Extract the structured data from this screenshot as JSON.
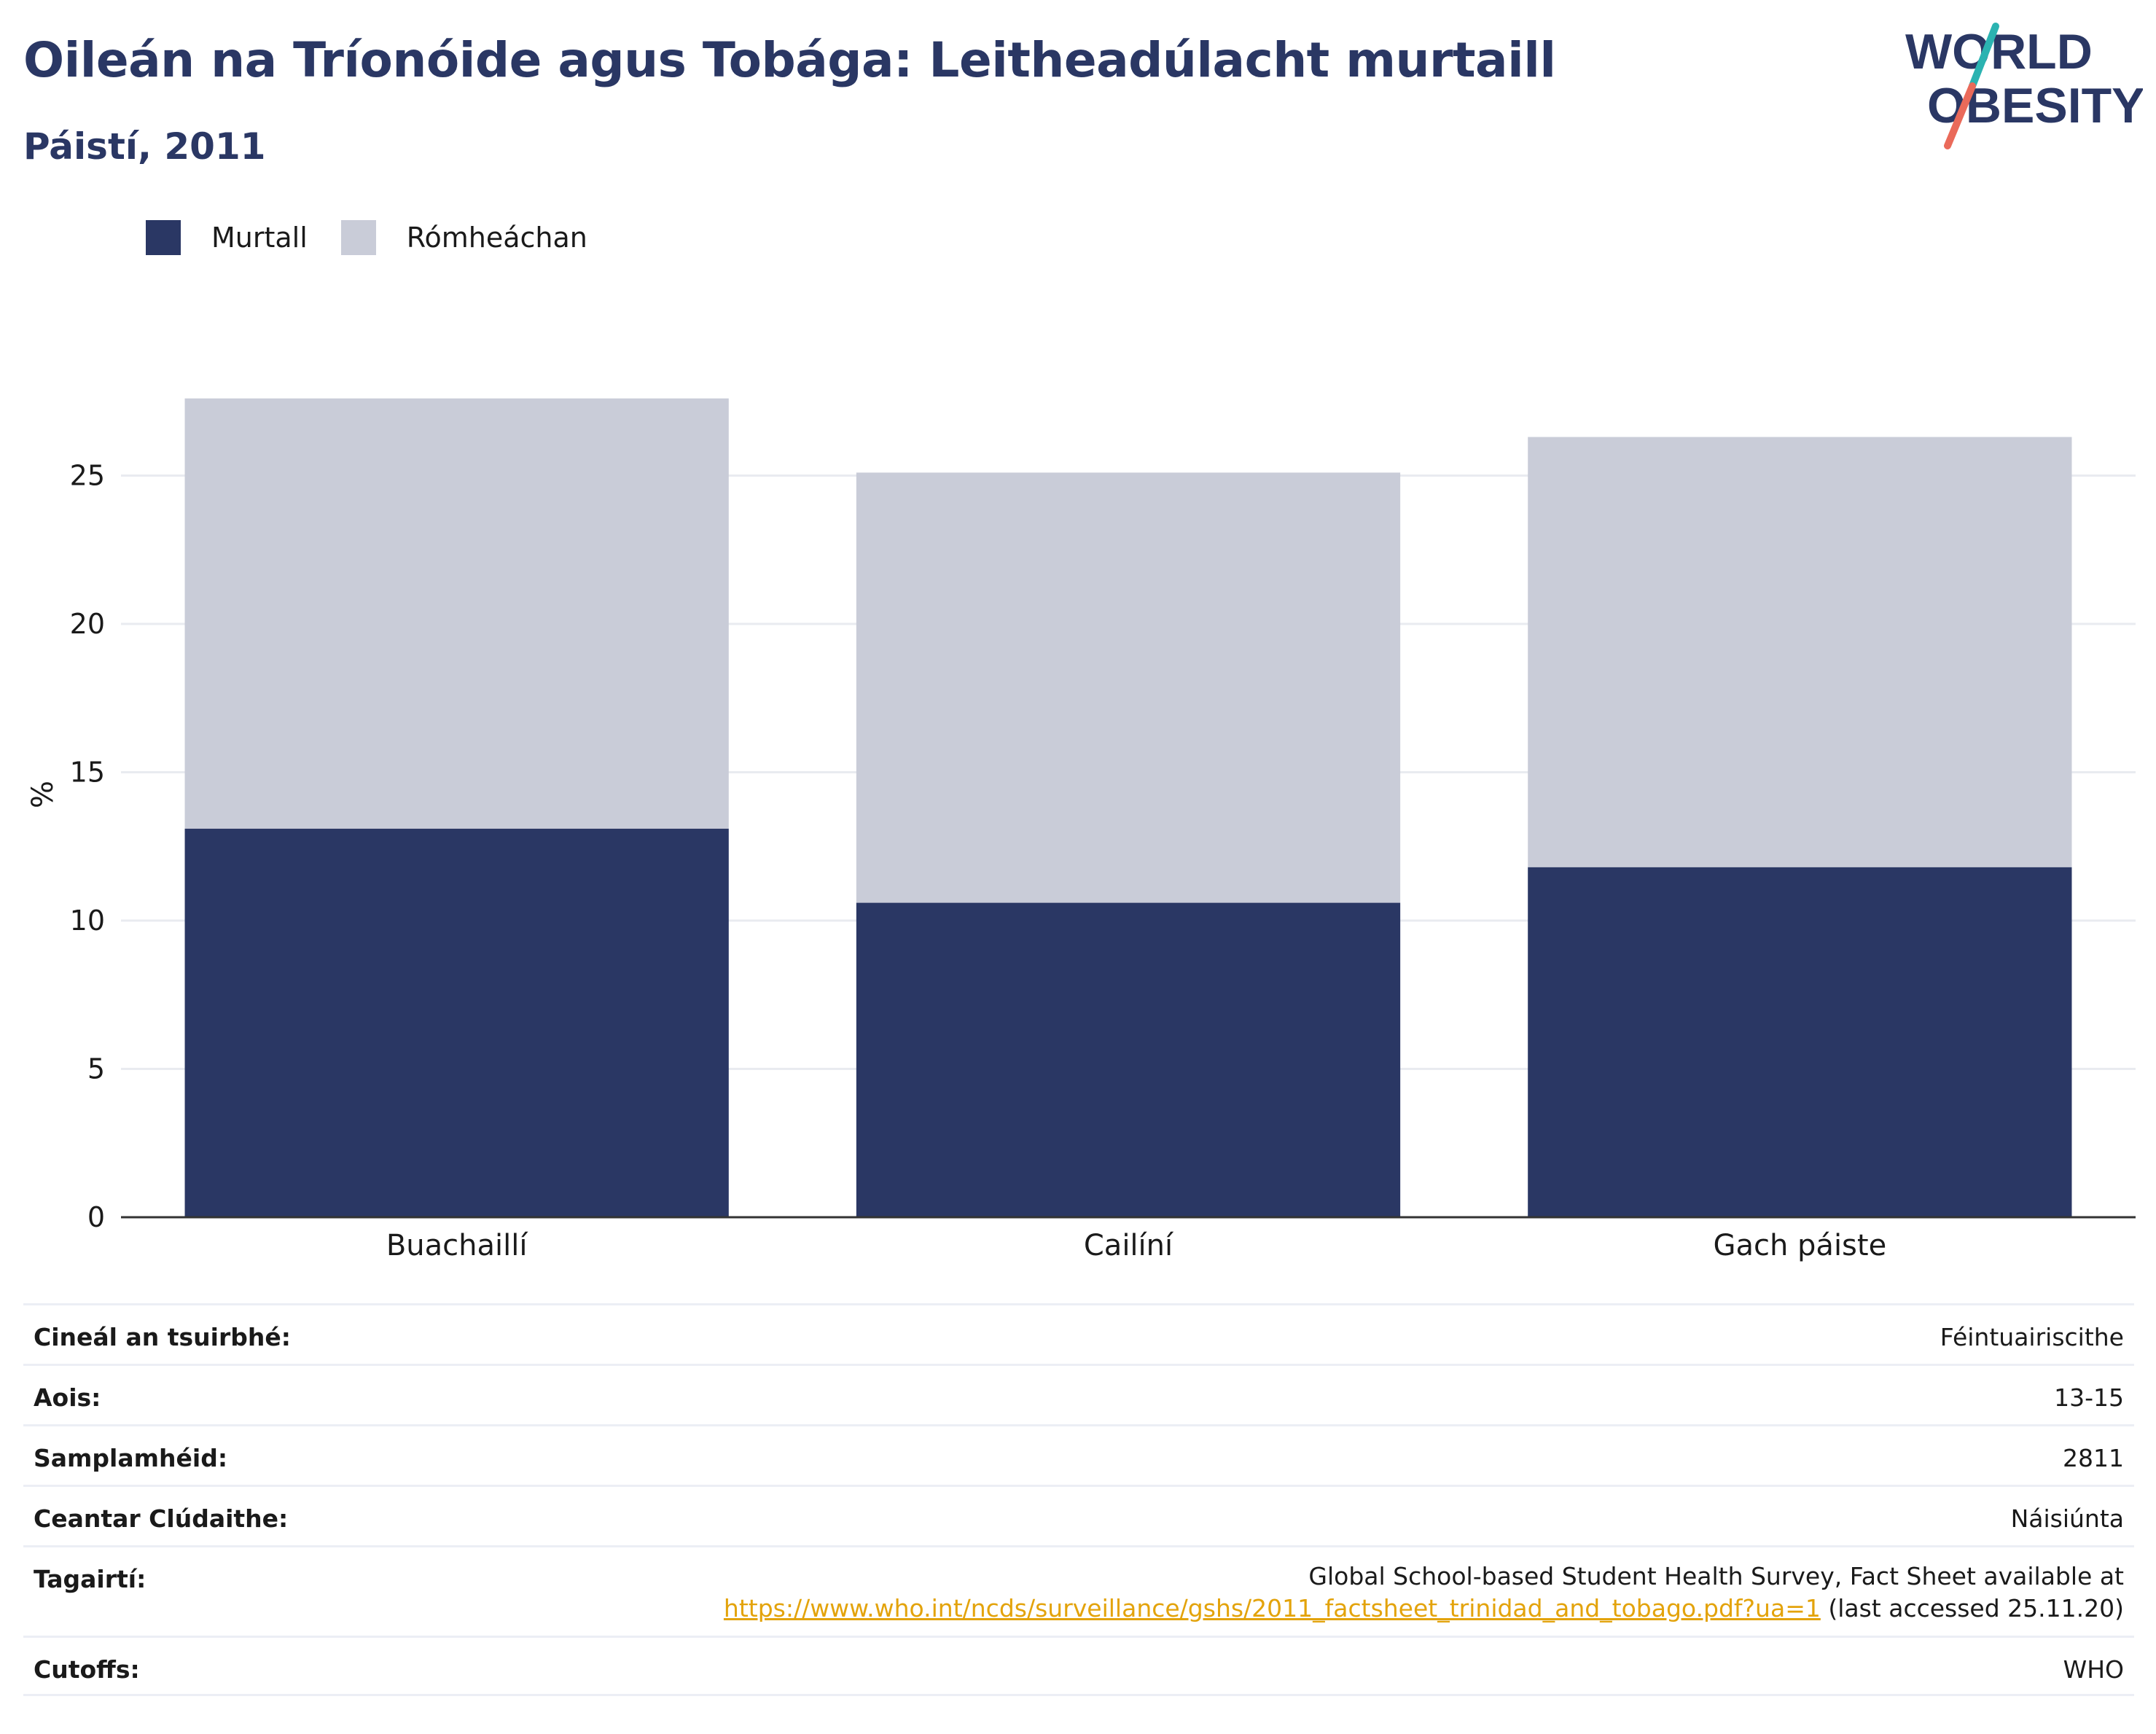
{
  "header": {
    "title": "Oileán na Tríonóide agus Tobága: Leitheadúlacht murtaill",
    "subtitle": "Páistí, 2011"
  },
  "logo": {
    "line1": "WORLD",
    "line2": "OBESITY",
    "icon": "slash-mark-icon",
    "colors": {
      "text": "#2a3764",
      "slash_top": "#2bb3b1",
      "slash_bottom": "#ea6a5a"
    }
  },
  "colors": {
    "obese": "#2a3764",
    "overweight": "#c9ccd8",
    "grid": "#e9ebf0",
    "axis": "#333333"
  },
  "chart_data": {
    "type": "bar",
    "stacked": true,
    "categories": [
      "Buachaillí",
      "Cailíní",
      "Gach páiste"
    ],
    "series": [
      {
        "name": "Murtall",
        "values": [
          13.1,
          10.6,
          11.8
        ],
        "color": "#2a3764"
      },
      {
        "name": "Rómheáchan",
        "values": [
          14.5,
          14.5,
          14.5
        ],
        "color": "#c9ccd8"
      }
    ],
    "ylabel": "%",
    "ylim": [
      0,
      28.5
    ],
    "yticks": [
      0,
      5,
      10,
      15,
      20,
      25
    ],
    "grid": true,
    "legend_position": "top-left"
  },
  "info": [
    {
      "key": "Cineál an tsuirbhé:",
      "value": "Féintuairiscithe"
    },
    {
      "key": "Aois:",
      "value": "13-15"
    },
    {
      "key": "Samplamhéid:",
      "value": "2811"
    },
    {
      "key": "Ceantar Clúdaithe:",
      "value": "Náisiúnta"
    },
    {
      "key": "Tagairtí:",
      "value_line1": "Global School-based Student Health Survey, Fact Sheet available at",
      "link": "https://www.who.int/ncds/surveillance/gshs/2011_factsheet_trinidad_and_tobago.pdf?ua=1",
      "value_suffix": " (last accessed 25.11.20)"
    },
    {
      "key": "Cutoffs:",
      "value": "WHO"
    }
  ]
}
